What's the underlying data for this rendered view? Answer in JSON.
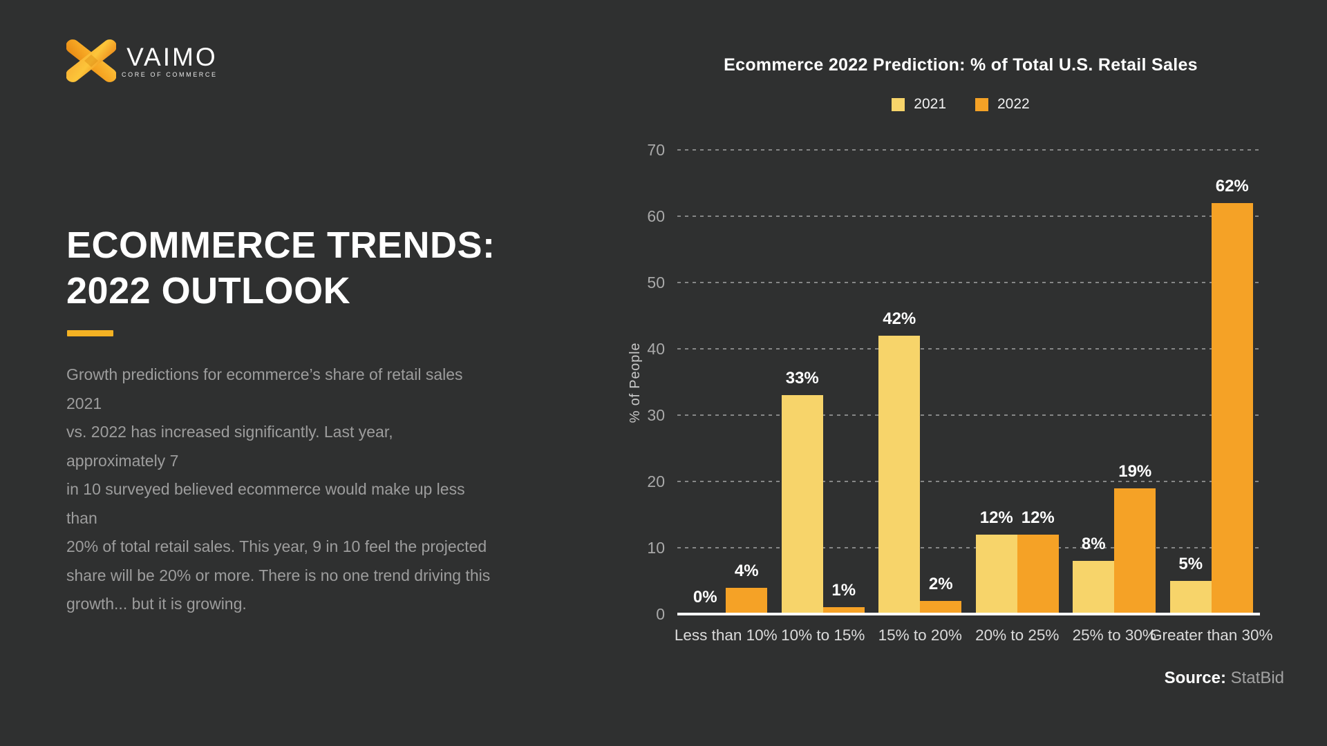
{
  "page": {
    "background": "#2f3030"
  },
  "logo": {
    "brand": "VAIMO",
    "tagline": "CORE OF COMMERCE",
    "x_color_top": "#f9b233",
    "x_color_bottom": "#ef8f1c"
  },
  "left_panel": {
    "title_line1": "ECOMMERCE TRENDS:",
    "title_line2": "2022 OUTLOOK",
    "underline_color": "#f4b223",
    "paragraph": "Growth predictions for ecommerce’s share of retail sales 2021\nvs. 2022 has increased significantly. Last year, approximately 7\nin 10 surveyed believed ecommerce would make up less than\n20% of total retail sales. This year, 9 in 10 feel the projected\nshare will be 20% or more. There is no one trend driving this\ngrowth... but it is growing."
  },
  "chart": {
    "title": "Ecommerce 2022 Prediction: % of Total U.S. Retail Sales",
    "ylabel": "% of People",
    "source_label": "Source:",
    "source_value": " StatBid",
    "legend": [
      {
        "label": "2021",
        "color": "#f7d46a"
      },
      {
        "label": "2022",
        "color": "#f5a226"
      }
    ]
  },
  "chart_data": {
    "type": "bar",
    "categories": [
      "Less than 10%",
      "10% to 15%",
      "15% to 20%",
      "20% to 25%",
      "25% to 30%",
      "Greater than 30%"
    ],
    "series": [
      {
        "name": "2021",
        "color": "#f7d46a",
        "values": [
          0,
          33,
          42,
          12,
          8,
          5
        ],
        "labels": [
          "0%",
          "33%",
          "42%",
          "12%",
          "8%",
          "5%"
        ]
      },
      {
        "name": "2022",
        "color": "#f5a226",
        "values": [
          4,
          1,
          2,
          12,
          19,
          62
        ],
        "labels": [
          "4%",
          "1%",
          "2%",
          "12%",
          "19%",
          "62%"
        ]
      }
    ],
    "title": "Ecommerce 2022 Prediction: % of Total U.S. Retail Sales",
    "xlabel": "",
    "ylabel": "% of People",
    "ylim": [
      0,
      70
    ],
    "yticks": [
      0,
      10,
      20,
      30,
      40,
      50,
      60,
      70
    ],
    "grid": "dashed-horizontal",
    "legend_position": "top-center",
    "source": "Source: StatBid"
  }
}
